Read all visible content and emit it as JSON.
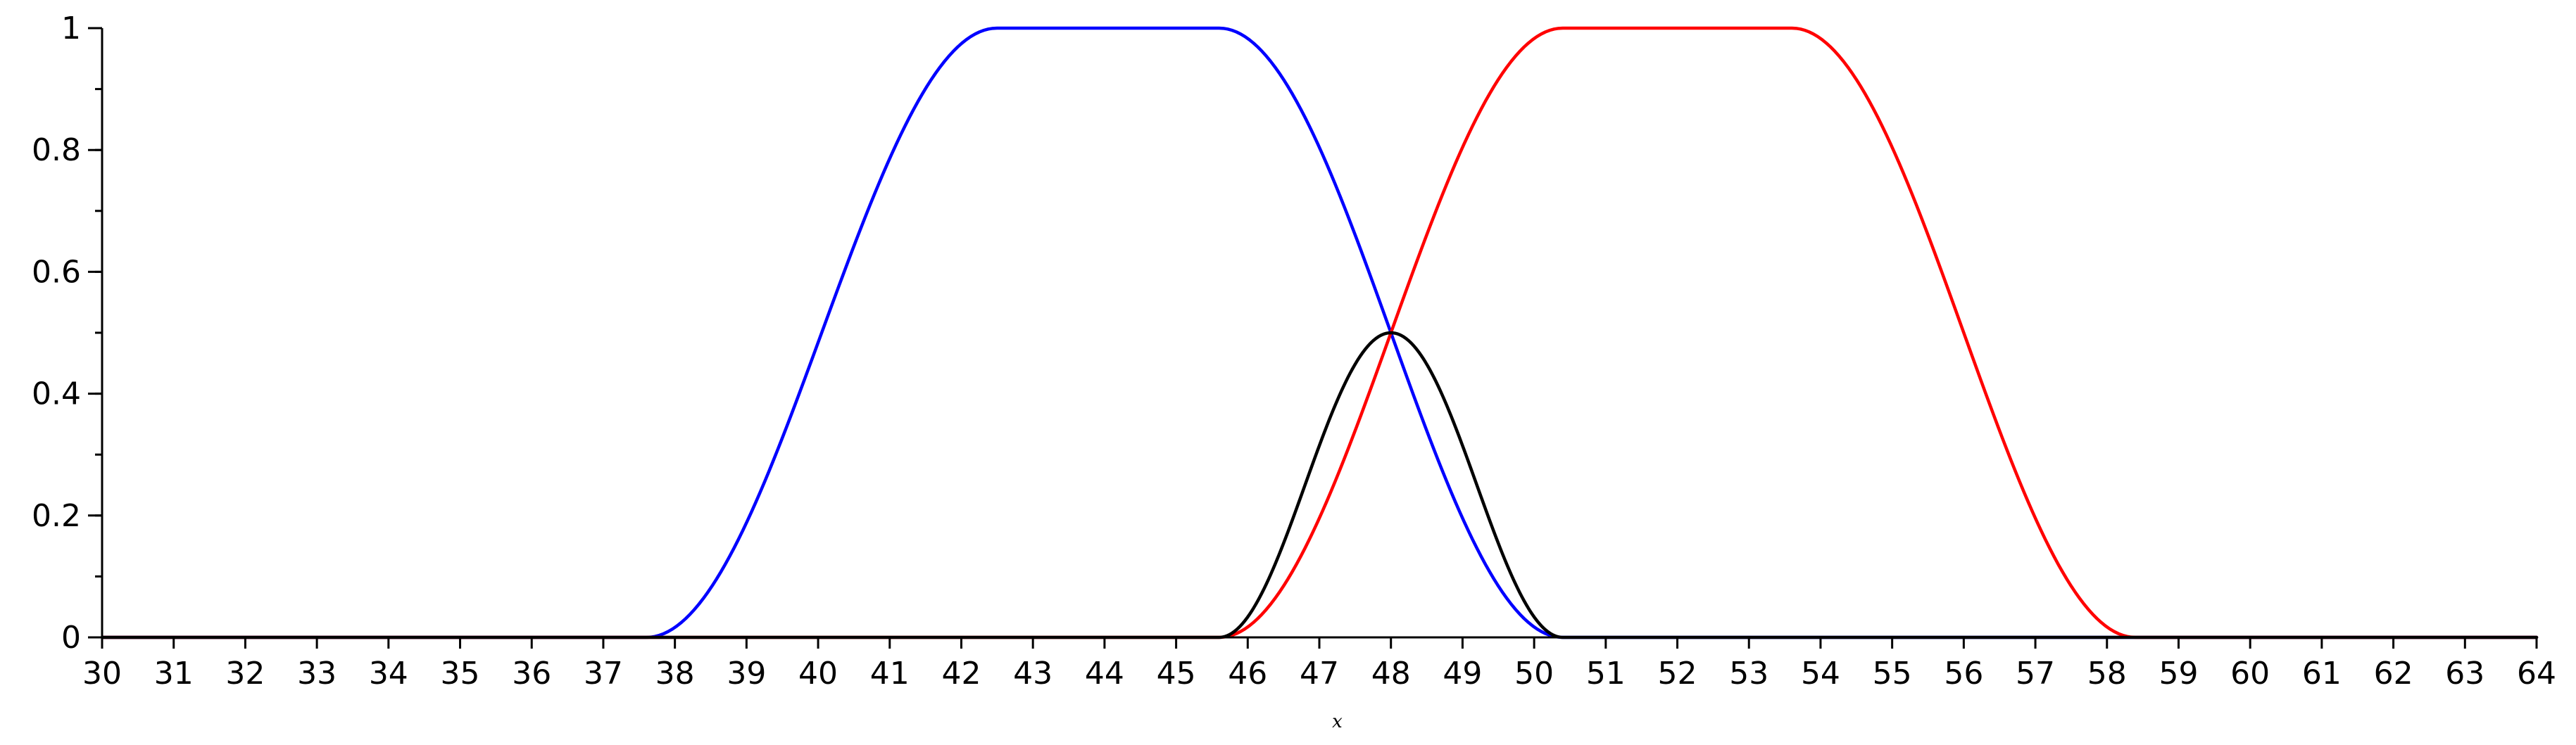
{
  "chart_data": {
    "type": "line",
    "title": "",
    "xlabel": "x",
    "ylabel": "",
    "xlim": [
      30,
      64
    ],
    "ylim": [
      0,
      1
    ],
    "x_ticks": [
      30,
      31,
      32,
      33,
      34,
      35,
      36,
      37,
      38,
      39,
      40,
      41,
      42,
      43,
      44,
      45,
      46,
      47,
      48,
      49,
      50,
      51,
      52,
      53,
      54,
      55,
      56,
      57,
      58,
      59,
      60,
      61,
      62,
      63,
      64
    ],
    "y_ticks": [
      {
        "value": 0,
        "label": "0"
      },
      {
        "value": 0.2,
        "label": "0.2"
      },
      {
        "value": 0.4,
        "label": "0.4"
      },
      {
        "value": 0.6,
        "label": "0.6"
      },
      {
        "value": 0.8,
        "label": "0.8"
      },
      {
        "value": 1,
        "label": "1"
      }
    ],
    "y_minor_step": 0.1,
    "grid": false,
    "series": [
      {
        "color": "#0000ff",
        "x": [
          30,
          37.6,
          42.5,
          45.6,
          50.4,
          64
        ],
        "y": [
          0,
          0,
          1,
          1,
          0,
          0
        ]
      },
      {
        "color": "#ff0000",
        "x": [
          30,
          45.6,
          50.4,
          53.6,
          58.4,
          64
        ],
        "y": [
          0,
          0,
          1,
          1,
          0,
          0
        ]
      },
      {
        "color": "#000000",
        "x": [
          30,
          45.6,
          48,
          50.4,
          64
        ],
        "y": [
          0,
          0,
          0.5,
          0,
          0
        ]
      }
    ]
  }
}
